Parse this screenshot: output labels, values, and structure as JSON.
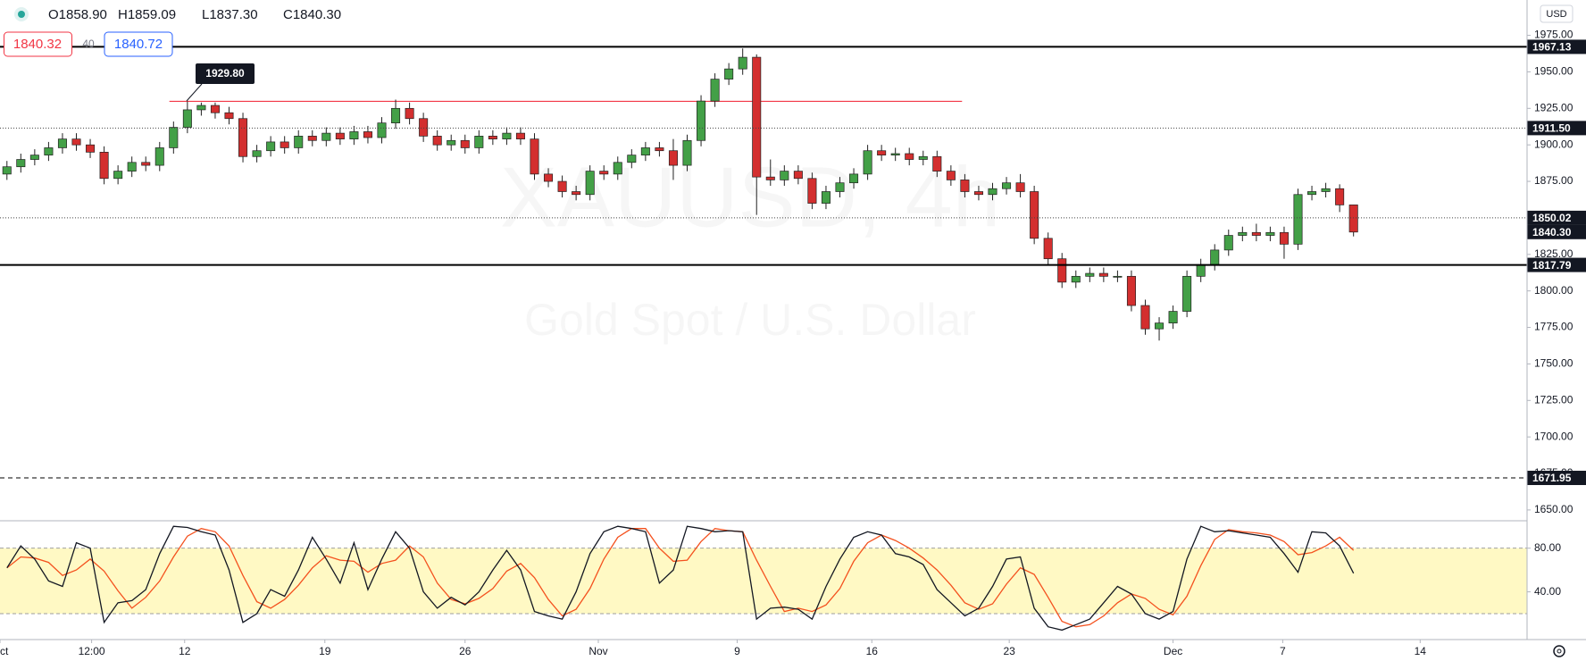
{
  "header": {
    "ohlc": [
      "O1858.90",
      "H1859.09",
      "L1837.30",
      "C1840.30"
    ],
    "bid": "1840.32",
    "spread": "40",
    "ask": "1840.72"
  },
  "chart_data": [
    {
      "type": "candlestick",
      "title": "XAUUSD, 4h",
      "subtitle": "Gold Spot / U.S. Dollar",
      "currency": "USD",
      "open": [
        1880,
        1885,
        1890,
        1893,
        1898,
        1904,
        1900,
        1895,
        1877,
        1882,
        1888,
        1886,
        1898,
        1912,
        1924,
        1927,
        1922,
        1918,
        1892,
        1896,
        1902,
        1898,
        1906,
        1903,
        1908,
        1904,
        1909,
        1905,
        1915,
        1925,
        1918,
        1906,
        1900,
        1903,
        1898,
        1906,
        1904,
        1908,
        1904,
        1880,
        1875,
        1868,
        1866,
        1882,
        1880,
        1888,
        1893,
        1898,
        1896,
        1886,
        1903,
        1930,
        1945,
        1952,
        1960,
        1878,
        1876,
        1882,
        1877,
        1860,
        1868,
        1874,
        1880,
        1896,
        1893,
        1894,
        1890,
        1892,
        1882,
        1876,
        1868,
        1866,
        1870,
        1874,
        1868,
        1836,
        1822,
        1806,
        1810,
        1812,
        1810,
        1810,
        1790,
        1774,
        1778,
        1786,
        1810,
        1818,
        1828,
        1838,
        1840,
        1838,
        1840,
        1832,
        1866,
        1868,
        1870,
        1858.9
      ],
      "high": [
        1889,
        1894,
        1897,
        1902,
        1908,
        1908,
        1904,
        1899,
        1886,
        1892,
        1892,
        1902,
        1916,
        1929.8,
        1929,
        1929,
        1926,
        1922,
        1900,
        1906,
        1906,
        1910,
        1910,
        1912,
        1912,
        1913,
        1913,
        1919,
        1931,
        1929,
        1922,
        1910,
        1907,
        1907,
        1910,
        1910,
        1912,
        1912,
        1908,
        1884,
        1879,
        1872,
        1886,
        1886,
        1892,
        1897,
        1902,
        1902,
        1904,
        1907,
        1934,
        1949,
        1956,
        1966,
        1962,
        1890,
        1886,
        1886,
        1881,
        1872,
        1878,
        1884,
        1900,
        1900,
        1898,
        1898,
        1896,
        1896,
        1886,
        1880,
        1872,
        1874,
        1878,
        1880,
        1872,
        1840,
        1826,
        1814,
        1816,
        1816,
        1814,
        1814,
        1794,
        1782,
        1790,
        1814,
        1822,
        1832,
        1842,
        1844,
        1846,
        1844,
        1844,
        1870,
        1872,
        1874,
        1873,
        1859.09
      ],
      "low": [
        1876,
        1881,
        1886,
        1889,
        1894,
        1896,
        1891,
        1873,
        1873,
        1878,
        1882,
        1882,
        1894,
        1908,
        1920,
        1918,
        1914,
        1888,
        1888,
        1892,
        1894,
        1894,
        1899,
        1899,
        1900,
        1900,
        1901,
        1901,
        1911,
        1914,
        1902,
        1896,
        1896,
        1894,
        1894,
        1900,
        1900,
        1900,
        1876,
        1871,
        1864,
        1862,
        1862,
        1876,
        1876,
        1884,
        1889,
        1892,
        1876,
        1882,
        1899,
        1926,
        1941,
        1948,
        1852,
        1872,
        1872,
        1873,
        1856,
        1856,
        1864,
        1870,
        1876,
        1889,
        1889,
        1886,
        1886,
        1878,
        1872,
        1864,
        1862,
        1862,
        1866,
        1864,
        1832,
        1818,
        1802,
        1802,
        1806,
        1806,
        1806,
        1786,
        1770,
        1766,
        1774,
        1782,
        1806,
        1814,
        1824,
        1834,
        1834,
        1834,
        1822,
        1828,
        1862,
        1864,
        1854,
        1837.3
      ],
      "close": [
        1885,
        1890,
        1893,
        1898,
        1904,
        1900,
        1895,
        1877,
        1882,
        1888,
        1886,
        1898,
        1912,
        1924,
        1927,
        1922,
        1918,
        1892,
        1896,
        1902,
        1898,
        1906,
        1903,
        1908,
        1904,
        1909,
        1905,
        1915,
        1925,
        1918,
        1906,
        1900,
        1903,
        1898,
        1906,
        1904,
        1908,
        1904,
        1880,
        1875,
        1868,
        1866,
        1882,
        1880,
        1888,
        1893,
        1898,
        1896,
        1886,
        1903,
        1930,
        1945,
        1952,
        1960,
        1878,
        1876,
        1882,
        1877,
        1860,
        1868,
        1874,
        1880,
        1896,
        1893,
        1894,
        1890,
        1892,
        1882,
        1876,
        1868,
        1866,
        1870,
        1874,
        1868,
        1836,
        1822,
        1806,
        1810,
        1812,
        1810,
        1810,
        1790,
        1774,
        1778,
        1786,
        1810,
        1818,
        1828,
        1838,
        1840,
        1838,
        1840,
        1832,
        1866,
        1868,
        1870,
        1858.9,
        1840.3
      ],
      "up_color": "#43a047",
      "down_color": "#d32f2f",
      "xlim": [
        0,
        110
      ],
      "xticks": [
        {
          "value": 0,
          "label": "Oct"
        },
        {
          "value": 6.6,
          "label": "12:00"
        },
        {
          "value": 13.3,
          "label": "12"
        },
        {
          "value": 23.4,
          "label": "19"
        },
        {
          "value": 33.5,
          "label": "26"
        },
        {
          "value": 43.1,
          "label": "Nov"
        },
        {
          "value": 53.1,
          "label": "9"
        },
        {
          "value": 62.8,
          "label": "16"
        },
        {
          "value": 72.7,
          "label": "23"
        },
        {
          "value": 84.5,
          "label": "Dec"
        },
        {
          "value": 92.4,
          "label": "7"
        },
        {
          "value": 102.3,
          "label": "14"
        }
      ],
      "ylim": [
        1642.6,
        1999.2
      ],
      "yticks": [
        {
          "value": 1650,
          "label": "1650.00"
        },
        {
          "value": 1675,
          "label": "1675.00"
        },
        {
          "value": 1700,
          "label": "1700.00"
        },
        {
          "value": 1725,
          "label": "1725.00"
        },
        {
          "value": 1750,
          "label": "1750.00"
        },
        {
          "value": 1775,
          "label": "1775.00"
        },
        {
          "value": 1800,
          "label": "1800.00"
        },
        {
          "value": 1825,
          "label": "1825.00"
        },
        {
          "value": 1850,
          "label": "1850.00"
        },
        {
          "value": 1875,
          "label": "1875.00"
        },
        {
          "value": 1900,
          "label": "1900.00"
        },
        {
          "value": 1925,
          "label": "1925.00"
        },
        {
          "value": 1950,
          "label": "1950.00"
        },
        {
          "value": 1975,
          "label": "1975.00"
        }
      ],
      "levels": [
        {
          "value": 1967.13,
          "label": "1967.13",
          "style": "solid"
        },
        {
          "value": 1911.5,
          "label": "1911.50",
          "style": "dotted"
        },
        {
          "value": 1850.02,
          "label": "1850.02",
          "style": "dotted"
        },
        {
          "value": 1817.79,
          "label": "1817.79",
          "style": "solid"
        },
        {
          "value": 1671.95,
          "label": "1671.95",
          "style": "dashed"
        }
      ],
      "last_price": {
        "value": 1840.3,
        "label": "1840.30"
      },
      "high_marker": {
        "value": 1929.8,
        "label": "1929.80",
        "start": 12.2,
        "end": 69.3,
        "color": "#f23645"
      }
    },
    {
      "type": "line",
      "series": [
        {
          "color": "#131722",
          "values": [
            62,
            82,
            70,
            50,
            45,
            85,
            80,
            12,
            30,
            32,
            42,
            75,
            100,
            99,
            95,
            92,
            60,
            12,
            20,
            42,
            36,
            60,
            90,
            70,
            48,
            85,
            42,
            70,
            95,
            80,
            40,
            25,
            35,
            28,
            40,
            60,
            78,
            60,
            22,
            18,
            15,
            40,
            75,
            95,
            100,
            98,
            95,
            48,
            60,
            100,
            98,
            95,
            96,
            95,
            15,
            25,
            26,
            24,
            15,
            45,
            70,
            90,
            95,
            92,
            75,
            72,
            65,
            42,
            30,
            18,
            25,
            45,
            70,
            72,
            25,
            8,
            5,
            10,
            15,
            30,
            45,
            38,
            20,
            15,
            22,
            70,
            100,
            95,
            96,
            94,
            92,
            90,
            75,
            58,
            95,
            94,
            82,
            57
          ]
        },
        {
          "color": "#f4511e",
          "values": [
            62,
            72,
            71,
            67,
            55,
            60,
            70,
            59,
            41,
            25,
            35,
            50,
            72,
            91,
            98,
            95,
            82,
            55,
            31,
            25,
            33,
            46,
            62,
            73,
            69,
            68,
            58,
            66,
            69,
            82,
            72,
            48,
            33,
            29,
            34,
            43,
            59,
            66,
            53,
            33,
            18,
            24,
            43,
            70,
            90,
            98,
            98,
            80,
            68,
            69,
            86,
            98,
            96,
            95,
            69,
            45,
            22,
            25,
            22,
            28,
            43,
            68,
            85,
            92,
            87,
            80,
            71,
            60,
            46,
            30,
            24,
            29,
            47,
            62,
            56,
            35,
            13,
            8,
            10,
            18,
            30,
            38,
            34,
            24,
            19,
            36,
            64,
            88,
            97,
            95,
            94,
            92,
            86,
            74,
            76,
            82,
            90,
            78
          ]
        }
      ],
      "ylim": [
        -3.7,
        105.1
      ],
      "yticks": [
        {
          "value": 40,
          "label": "40.00"
        },
        {
          "value": 80,
          "label": "80.00"
        }
      ],
      "band": [
        20,
        80
      ],
      "band_color": "#fff9c4"
    }
  ]
}
